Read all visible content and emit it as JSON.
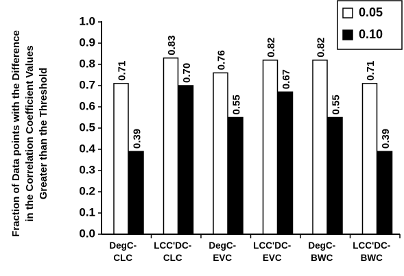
{
  "chart_data": {
    "type": "bar",
    "title": "",
    "xlabel": "",
    "ylabel": "Fraction of Data points with the Difference in the Correlation Coefficient Values Greater than the Threshold",
    "ylabel_lines": [
      "Fraction of Data points with the Difference",
      "in the Correlation Coefficient Values",
      "Greater than the Threshold"
    ],
    "ylim": [
      0.0,
      1.0
    ],
    "yticks": [
      "0.0",
      "0.1",
      "0.2",
      "0.3",
      "0.4",
      "0.5",
      "0.6",
      "0.7",
      "0.8",
      "0.9",
      "1.0"
    ],
    "categories": [
      [
        "DegC-",
        "CLC"
      ],
      [
        "LCC'DC-",
        "CLC"
      ],
      [
        "DegC-",
        "EVC"
      ],
      [
        "LCC'DC-",
        "EVC"
      ],
      [
        "DegC-",
        "BWC"
      ],
      [
        "LCC'DC-",
        "BWC"
      ]
    ],
    "series": [
      {
        "name": "0.05",
        "color": "#ffffff",
        "values": [
          0.71,
          0.83,
          0.76,
          0.82,
          0.82,
          0.71
        ],
        "labels": [
          "0.71",
          "0.83",
          "0.76",
          "0.82",
          "0.82",
          "0.71"
        ]
      },
      {
        "name": "0.10",
        "color": "#000000",
        "values": [
          0.39,
          0.7,
          0.55,
          0.67,
          0.55,
          0.39
        ],
        "labels": [
          "0.39",
          "0.70",
          "0.55",
          "0.67",
          "0.55",
          "0.39"
        ]
      }
    ],
    "grid": false,
    "legend_position": "top-right"
  }
}
